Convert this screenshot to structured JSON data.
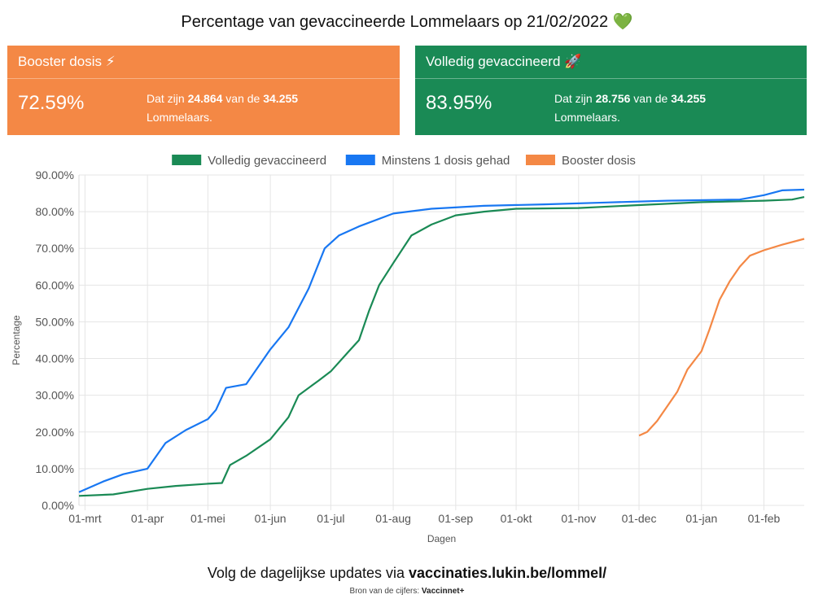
{
  "title": "Percentage van gevaccineerde Lommelaars op 21/02/2022 💚",
  "cards": {
    "booster": {
      "header": "Booster dosis ⚡",
      "percent": "72.59%",
      "desc_prefix": "Dat zijn ",
      "count": "24.864",
      "desc_mid": " van de ",
      "total": "34.255",
      "desc_suffix": "Lommelaars.",
      "color": "#f48845"
    },
    "full": {
      "header": "Volledig gevaccineerd 🚀",
      "percent": "83.95%",
      "desc_prefix": "Dat zijn ",
      "count": "28.756",
      "desc_mid": " van de ",
      "total": "34.255",
      "desc_suffix": "Lommelaars.",
      "color": "#1a8a55"
    }
  },
  "chart_data": {
    "type": "line",
    "xlabel": "Dagen",
    "ylabel": "Percentage",
    "ylim": [
      0,
      90
    ],
    "yticks": [
      "0.00%",
      "10.00%",
      "20.00%",
      "30.00%",
      "40.00%",
      "50.00%",
      "60.00%",
      "70.00%",
      "80.00%",
      "90.00%"
    ],
    "xticks": [
      "01-mrt",
      "01-apr",
      "01-mei",
      "01-jun",
      "01-jul",
      "01-aug",
      "01-sep",
      "01-okt",
      "01-nov",
      "01-dec",
      "01-jan",
      "01-feb"
    ],
    "xrange": [
      "2021-02-26",
      "2022-02-21"
    ],
    "grid": true,
    "legend_position": "top",
    "series": [
      {
        "name": "Volledig gevaccineerd",
        "color": "#1a8a55",
        "points": [
          [
            "2021-02-26",
            2.6
          ],
          [
            "2021-03-15",
            3.0
          ],
          [
            "2021-04-01",
            4.5
          ],
          [
            "2021-04-15",
            5.3
          ],
          [
            "2021-05-01",
            5.9
          ],
          [
            "2021-05-08",
            6.1
          ],
          [
            "2021-05-12",
            11.0
          ],
          [
            "2021-05-20",
            13.5
          ],
          [
            "2021-06-01",
            18.0
          ],
          [
            "2021-06-10",
            24.0
          ],
          [
            "2021-06-15",
            30.0
          ],
          [
            "2021-06-25",
            34.0
          ],
          [
            "2021-07-01",
            36.5
          ],
          [
            "2021-07-10",
            42.0
          ],
          [
            "2021-07-15",
            45.0
          ],
          [
            "2021-07-20",
            53.0
          ],
          [
            "2021-07-25",
            60.0
          ],
          [
            "2021-08-01",
            66.0
          ],
          [
            "2021-08-10",
            73.5
          ],
          [
            "2021-08-20",
            76.5
          ],
          [
            "2021-09-01",
            79.0
          ],
          [
            "2021-09-15",
            80.0
          ],
          [
            "2021-10-01",
            80.8
          ],
          [
            "2021-11-01",
            81.0
          ],
          [
            "2021-12-01",
            81.8
          ],
          [
            "2022-01-01",
            82.6
          ],
          [
            "2022-02-01",
            83.0
          ],
          [
            "2022-02-15",
            83.3
          ],
          [
            "2022-02-21",
            84.0
          ]
        ]
      },
      {
        "name": "Minstens 1 dosis gehad",
        "color": "#1877f2",
        "points": [
          [
            "2021-02-26",
            3.6
          ],
          [
            "2021-03-10",
            6.5
          ],
          [
            "2021-03-20",
            8.5
          ],
          [
            "2021-04-01",
            10.0
          ],
          [
            "2021-04-10",
            17.0
          ],
          [
            "2021-04-20",
            20.5
          ],
          [
            "2021-05-01",
            23.5
          ],
          [
            "2021-05-05",
            26.0
          ],
          [
            "2021-05-10",
            32.0
          ],
          [
            "2021-05-20",
            33.0
          ],
          [
            "2021-06-01",
            42.5
          ],
          [
            "2021-06-10",
            48.5
          ],
          [
            "2021-06-20",
            59.0
          ],
          [
            "2021-06-28",
            70.0
          ],
          [
            "2021-07-05",
            73.5
          ],
          [
            "2021-07-15",
            76.0
          ],
          [
            "2021-08-01",
            79.5
          ],
          [
            "2021-08-20",
            80.8
          ],
          [
            "2021-09-15",
            81.6
          ],
          [
            "2021-10-15",
            82.0
          ],
          [
            "2021-11-15",
            82.5
          ],
          [
            "2021-12-15",
            83.0
          ],
          [
            "2022-01-20",
            83.3
          ],
          [
            "2022-02-01",
            84.5
          ],
          [
            "2022-02-10",
            85.8
          ],
          [
            "2022-02-21",
            86.0
          ]
        ]
      },
      {
        "name": "Booster dosis",
        "color": "#f48845",
        "points": [
          [
            "2021-12-01",
            19.0
          ],
          [
            "2021-12-05",
            20.0
          ],
          [
            "2021-12-10",
            23.0
          ],
          [
            "2021-12-15",
            27.0
          ],
          [
            "2021-12-20",
            31.0
          ],
          [
            "2021-12-25",
            37.0
          ],
          [
            "2022-01-01",
            42.0
          ],
          [
            "2022-01-05",
            48.0
          ],
          [
            "2022-01-10",
            56.0
          ],
          [
            "2022-01-15",
            61.0
          ],
          [
            "2022-01-20",
            65.0
          ],
          [
            "2022-01-25",
            68.0
          ],
          [
            "2022-02-01",
            69.5
          ],
          [
            "2022-02-10",
            71.0
          ],
          [
            "2022-02-21",
            72.6
          ]
        ]
      }
    ]
  },
  "footer": {
    "prefix": "Volg de dagelijkse updates via ",
    "link": "vaccinaties.lukin.be/lommel/"
  },
  "source": {
    "prefix": "Bron van de cijfers: ",
    "name": "Vaccinnet+"
  }
}
